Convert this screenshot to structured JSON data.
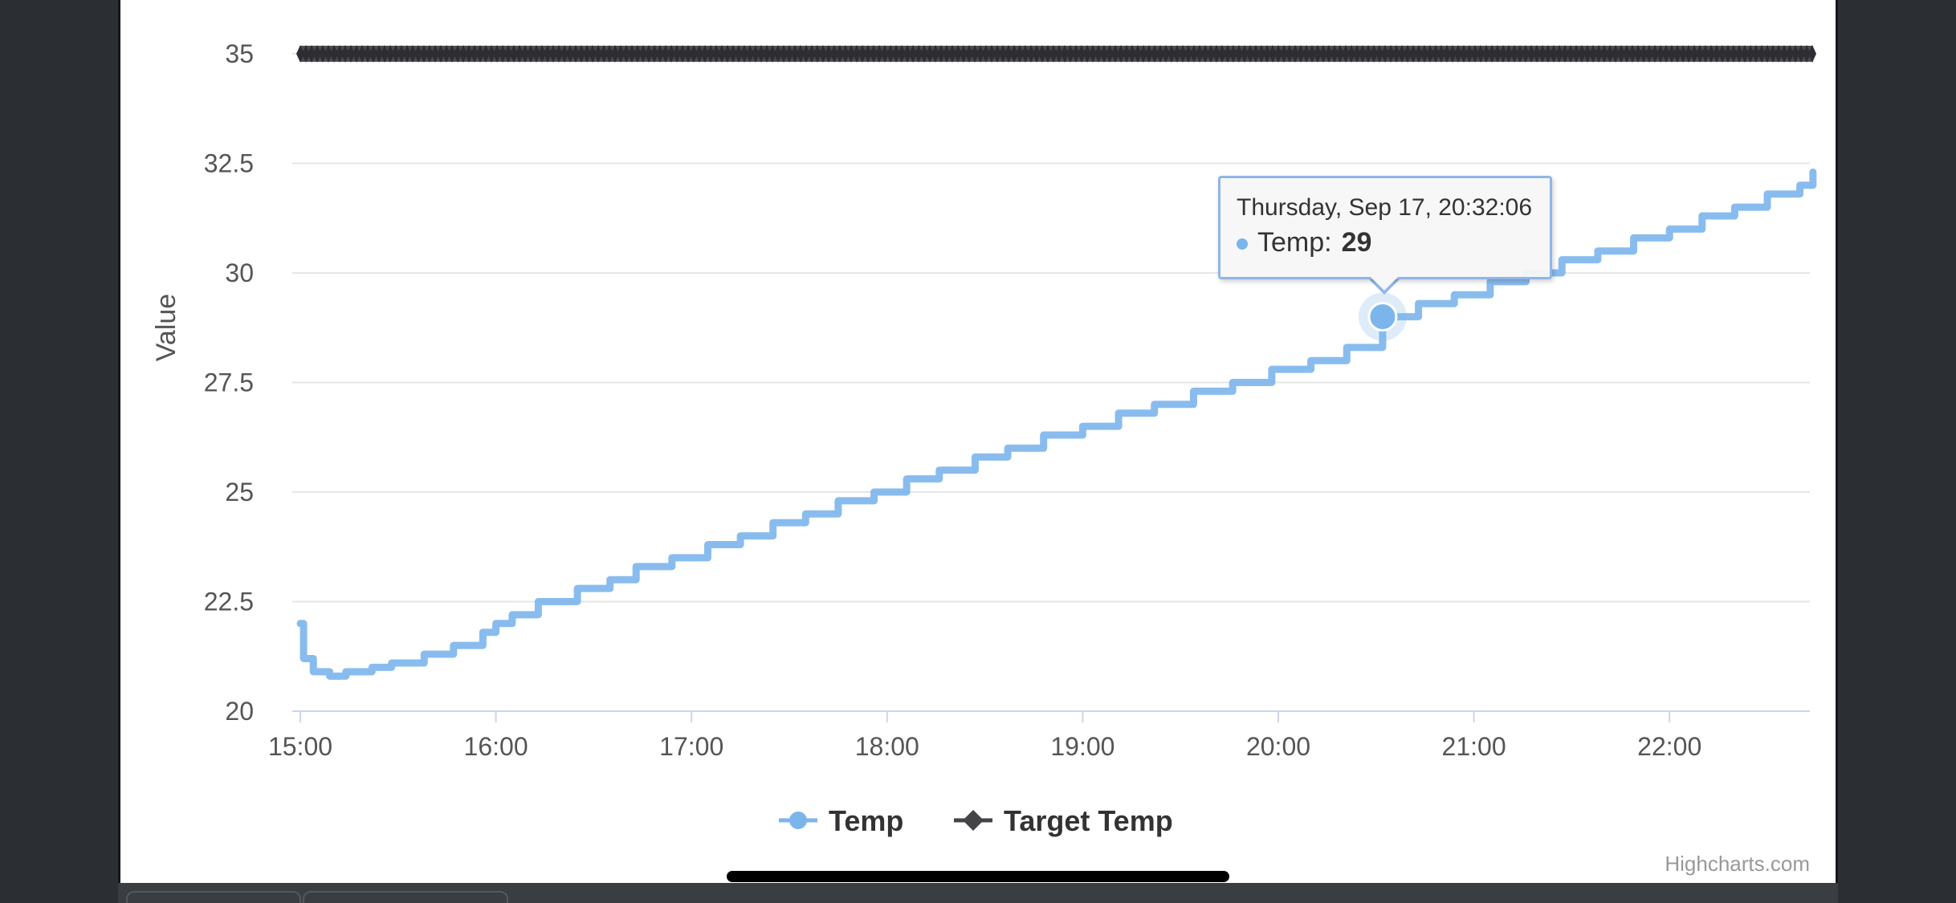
{
  "chart_data": {
    "type": "line",
    "title": "",
    "xlabel": "",
    "ylabel": "Value",
    "ylim": [
      20,
      35
    ],
    "yticks": [
      "20",
      "22.5",
      "25",
      "27.5",
      "30",
      "32.5",
      "35"
    ],
    "yticks_values": [
      20,
      22.5,
      25,
      27.5,
      30,
      32.5,
      35
    ],
    "xticks": [
      "15:00",
      "16:00",
      "17:00",
      "18:00",
      "19:00",
      "20:00",
      "21:00",
      "22:00"
    ],
    "xlim": [
      "15:00",
      "22:44"
    ],
    "grid": true,
    "legend_position": "bottom-center",
    "series": [
      {
        "name": "Temp",
        "color": "#7cb5ec",
        "marker": "circle",
        "step": true,
        "points": [
          [
            "15:00",
            22.0
          ],
          [
            "15:01",
            21.2
          ],
          [
            "15:04",
            20.9
          ],
          [
            "15:09",
            20.8
          ],
          [
            "15:14",
            20.9
          ],
          [
            "15:22",
            21.0
          ],
          [
            "15:28",
            21.1
          ],
          [
            "15:38",
            21.3
          ],
          [
            "15:47",
            21.5
          ],
          [
            "15:56",
            21.8
          ],
          [
            "16:00",
            22.0
          ],
          [
            "16:05",
            22.2
          ],
          [
            "16:13",
            22.5
          ],
          [
            "16:25",
            22.8
          ],
          [
            "16:35",
            23.0
          ],
          [
            "16:43",
            23.3
          ],
          [
            "16:54",
            23.5
          ],
          [
            "17:05",
            23.8
          ],
          [
            "17:15",
            24.0
          ],
          [
            "17:25",
            24.3
          ],
          [
            "17:35",
            24.5
          ],
          [
            "17:45",
            24.8
          ],
          [
            "17:56",
            25.0
          ],
          [
            "18:06",
            25.3
          ],
          [
            "18:16",
            25.5
          ],
          [
            "18:27",
            25.8
          ],
          [
            "18:37",
            26.0
          ],
          [
            "18:48",
            26.3
          ],
          [
            "19:00",
            26.5
          ],
          [
            "19:11",
            26.8
          ],
          [
            "19:22",
            27.0
          ],
          [
            "19:34",
            27.3
          ],
          [
            "19:46",
            27.5
          ],
          [
            "19:58",
            27.8
          ],
          [
            "20:10",
            28.0
          ],
          [
            "20:21",
            28.3
          ],
          [
            "20:32",
            29.0
          ],
          [
            "20:43",
            29.3
          ],
          [
            "20:54",
            29.5
          ],
          [
            "21:05",
            29.8
          ],
          [
            "21:16",
            30.0
          ],
          [
            "21:27",
            30.3
          ],
          [
            "21:38",
            30.5
          ],
          [
            "21:49",
            30.8
          ],
          [
            "22:00",
            31.0
          ],
          [
            "22:10",
            31.3
          ],
          [
            "22:20",
            31.5
          ],
          [
            "22:30",
            31.8
          ],
          [
            "22:40",
            32.0
          ],
          [
            "22:44",
            32.3
          ]
        ]
      },
      {
        "name": "Target Temp",
        "color": "#434348",
        "marker": "diamond",
        "points": [
          [
            "15:00",
            35.0
          ],
          [
            "22:44",
            35.0
          ]
        ]
      }
    ],
    "tooltip": {
      "header": "Thursday, Sep 17, 20:32:06",
      "series_label": "Temp:",
      "value": "29",
      "x": "20:32",
      "y": 29
    },
    "credit": "Highcharts.com"
  }
}
